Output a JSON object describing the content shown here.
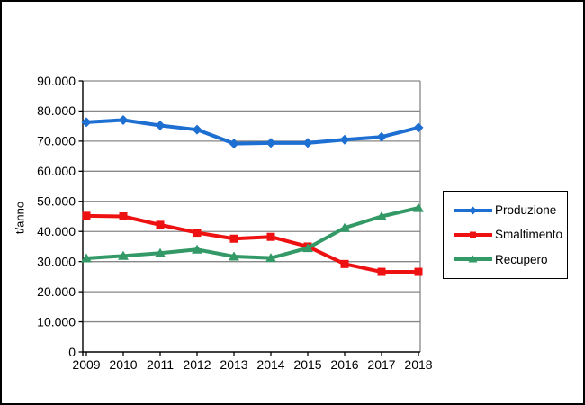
{
  "chart_data": {
    "type": "line",
    "title": "",
    "xlabel": "",
    "ylabel": "t/anno",
    "ylim": [
      0,
      90000
    ],
    "ytick_step": 10000,
    "ytick_labels": [
      "0",
      "10.000",
      "20.000",
      "30.000",
      "40.000",
      "50.000",
      "60.000",
      "70.000",
      "80.000",
      "90.000"
    ],
    "categories": [
      "2009",
      "2010",
      "2011",
      "2012",
      "2013",
      "2014",
      "2015",
      "2016",
      "2017",
      "2018"
    ],
    "series": [
      {
        "name": "Produzione",
        "color": "#1e6fd2",
        "marker": "diamond",
        "values": [
          76300,
          77000,
          75200,
          73800,
          69200,
          69400,
          69400,
          70500,
          71400,
          74500
        ]
      },
      {
        "name": "Smaltimento",
        "color": "#ee1111",
        "marker": "square",
        "values": [
          45200,
          45000,
          42200,
          39600,
          37600,
          38200,
          35000,
          29200,
          26600,
          26600
        ]
      },
      {
        "name": "Recupero",
        "color": "#339966",
        "marker": "triangle",
        "values": [
          31100,
          31900,
          32800,
          34000,
          31700,
          31200,
          34500,
          41200,
          45000,
          47800
        ]
      }
    ],
    "legend_position": "right",
    "grid": "horizontal",
    "axis_color": "#000000",
    "gridline_color": "#878787",
    "plot_bg": "#ffffff"
  }
}
